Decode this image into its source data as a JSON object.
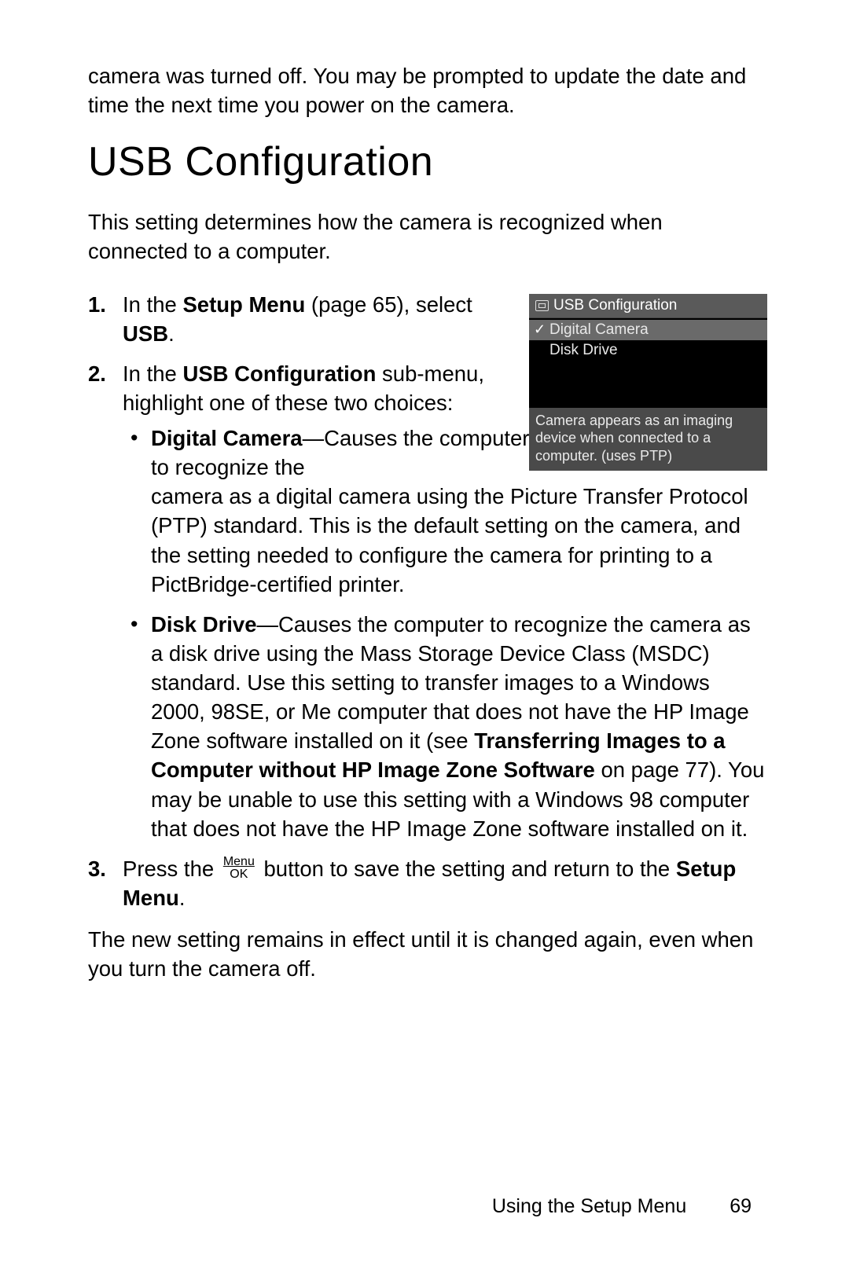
{
  "intro": "camera was turned off. You may be prompted to update the date and time the next time you power on the camera.",
  "heading": "USB Configuration",
  "description": "This setting determines how the camera is recognized when connected to a computer.",
  "steps": {
    "s1": {
      "prefix": "In the ",
      "bold1": "Setup Menu",
      "mid": " (page 65), select ",
      "bold2": "USB",
      "suffix": "."
    },
    "s2": {
      "prefix": "In the ",
      "bold1": "USB Configuration",
      "suffix": " sub-menu, highlight one of these two choices:"
    },
    "s3": {
      "prefix": "Press the ",
      "mid": " button to save the setting and return to the ",
      "bold1": "Setup Menu",
      "suffix": "."
    }
  },
  "menu_ok": {
    "top": "Menu",
    "bottom": "OK"
  },
  "bullets": {
    "a": {
      "bold": "Digital Camera",
      "start": "—Causes the computer to recognize the ",
      "rest": "camera as a digital camera using the Picture Transfer Protocol (PTP) standard. This is the default setting on the camera, and the setting needed to configure the camera for printing to a PictBridge-certified printer."
    },
    "b": {
      "bold1": "Disk Drive",
      "part1": "—Causes the computer to recognize the camera as a disk drive using the Mass Storage Device Class (MSDC) standard. Use this setting to transfer images to a Windows 2000, 98SE, or Me computer that does not have the HP Image Zone software installed on it (see ",
      "bold2": "Transferring Images to a Computer without HP Image Zone Software",
      "part2": " on page 77). You may be unable to use this setting with a Windows 98 computer that does not have the HP Image Zone software installed on it."
    }
  },
  "closing": "The new setting remains in effect until it is changed again, even when you turn the camera off.",
  "screenshot": {
    "title": "USB Configuration",
    "item1": "Digital Camera",
    "item2": "Disk Drive",
    "footer": "Camera appears as an imaging device when connected to a computer. (uses PTP)"
  },
  "footer": {
    "text": "Using the Setup Menu",
    "page": "69"
  },
  "colors": {
    "text": "#000000",
    "bg": "#ffffff",
    "shot_header_bg": "#5a5a5a",
    "shot_selected_bg": "#6a6a6a",
    "shot_footer_bg": "#4a4a4a",
    "shot_text": "#eaeaea"
  }
}
